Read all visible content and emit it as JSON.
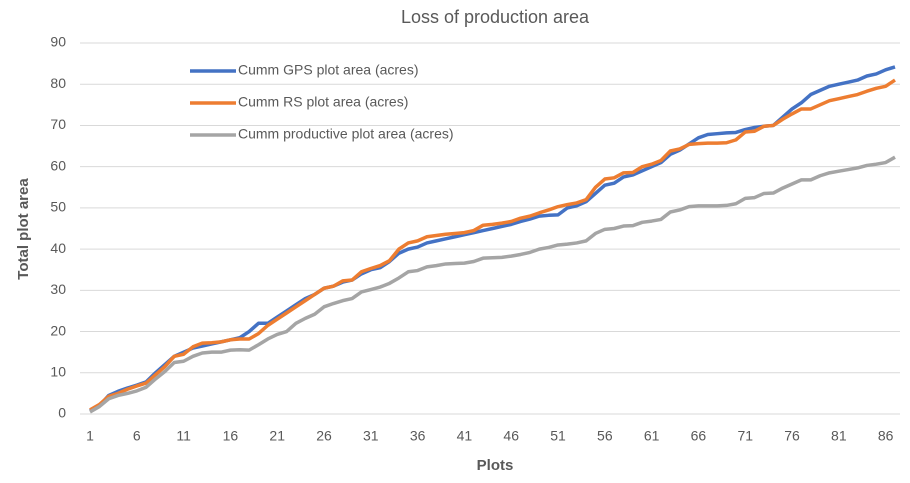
{
  "chart_data": {
    "type": "line",
    "title": "Loss of production area",
    "x_label": "Plots",
    "y_label": "Total plot area",
    "x": [
      1,
      2,
      3,
      4,
      5,
      6,
      7,
      8,
      9,
      10,
      11,
      12,
      13,
      14,
      15,
      16,
      17,
      18,
      19,
      20,
      21,
      22,
      23,
      24,
      25,
      26,
      27,
      28,
      29,
      30,
      31,
      32,
      33,
      34,
      35,
      36,
      37,
      38,
      39,
      40,
      41,
      42,
      43,
      44,
      45,
      46,
      47,
      48,
      49,
      50,
      51,
      52,
      53,
      54,
      55,
      56,
      57,
      58,
      59,
      60,
      61,
      62,
      63,
      64,
      65,
      66,
      67,
      68,
      69,
      70,
      71,
      72,
      73,
      74,
      75,
      76,
      77,
      78,
      79,
      80,
      81,
      82,
      83,
      84,
      85,
      86,
      87
    ],
    "xlim": [
      1,
      87
    ],
    "xticks": [
      1,
      6,
      11,
      16,
      21,
      26,
      31,
      36,
      41,
      46,
      51,
      56,
      61,
      66,
      71,
      76,
      81,
      86
    ],
    "ylim": [
      0,
      90
    ],
    "yticks": [
      0,
      10,
      20,
      30,
      40,
      50,
      60,
      70,
      80,
      90
    ],
    "grid": true,
    "legend": "upper left",
    "series": [
      {
        "name": "Cumm GPS plot area (acres)",
        "color": "#4472c4",
        "values": [
          0.8,
          2,
          4.5,
          5.5,
          6.3,
          7,
          7.8,
          10,
          12,
          14,
          15,
          16,
          16.5,
          17,
          17.5,
          18,
          18.5,
          20,
          22,
          22,
          23.5,
          25,
          26.5,
          28,
          29,
          30.5,
          31,
          32,
          32.5,
          34,
          35,
          35.5,
          37,
          39,
          40,
          40.5,
          41.5,
          42,
          42.5,
          43,
          43.5,
          44,
          44.5,
          45,
          45.5,
          46,
          46.7,
          47.3,
          48,
          48.2,
          48.3,
          50,
          50.5,
          51.5,
          53.5,
          55.5,
          56,
          57.5,
          58,
          59,
          60,
          61,
          63,
          64,
          65.5,
          67,
          67.8,
          68,
          68.2,
          68.3,
          69,
          69.5,
          69.8,
          70,
          72,
          74,
          75.5,
          77.5,
          78.5,
          79.5,
          80,
          80.5,
          81,
          82,
          82.5,
          83.5,
          84.2
        ]
      },
      {
        "name": "Cumm RS plot area (acres)",
        "color": "#ed7d31",
        "values": [
          1,
          2.3,
          4.3,
          5,
          6,
          6.8,
          7.5,
          9.5,
          11.5,
          14,
          14.5,
          16.3,
          17.2,
          17.3,
          17.5,
          18,
          18.2,
          18.2,
          19.5,
          21.5,
          23,
          24.5,
          26,
          27.5,
          29,
          30.5,
          31,
          32.3,
          32.5,
          34.5,
          35.3,
          36,
          37.2,
          40,
          41.5,
          42,
          43,
          43.3,
          43.6,
          43.8,
          44,
          44.5,
          45.8,
          46,
          46.3,
          46.7,
          47.5,
          48,
          48.8,
          49.5,
          50.3,
          50.8,
          51.2,
          52,
          55,
          57,
          57.3,
          58.5,
          58.6,
          60,
          60.6,
          61.5,
          63.8,
          64.3,
          65.4,
          65.6,
          65.7,
          65.7,
          65.8,
          66.5,
          68.4,
          68.6,
          69.8,
          70,
          71.5,
          72.8,
          74,
          74,
          75,
          76,
          76.5,
          77,
          77.5,
          78.3,
          79,
          79.5,
          81
        ]
      },
      {
        "name": "Cumm productive plot area (acres)",
        "color": "#a5a5a5",
        "values": [
          0.5,
          1.8,
          3.7,
          4.5,
          5,
          5.6,
          6.5,
          8.5,
          10.3,
          12.5,
          12.8,
          14,
          14.8,
          15,
          15,
          15.5,
          15.6,
          15.5,
          16.8,
          18.2,
          19.3,
          20,
          22,
          23.2,
          24.2,
          26,
          26.8,
          27.5,
          28,
          29.6,
          30.2,
          30.8,
          31.7,
          33,
          34.5,
          34.8,
          35.7,
          36,
          36.4,
          36.5,
          36.6,
          37,
          37.8,
          37.9,
          38,
          38.3,
          38.7,
          39.2,
          40,
          40.4,
          41,
          41.2,
          41.5,
          42,
          43.8,
          44.8,
          45,
          45.6,
          45.7,
          46.5,
          46.8,
          47.2,
          49,
          49.5,
          50.3,
          50.5,
          50.5,
          50.5,
          50.6,
          51,
          52.3,
          52.5,
          53.5,
          53.6,
          54.8,
          55.8,
          56.8,
          56.8,
          57.8,
          58.5,
          58.9,
          59.3,
          59.7,
          60.3,
          60.6,
          61,
          62.3
        ]
      }
    ]
  }
}
